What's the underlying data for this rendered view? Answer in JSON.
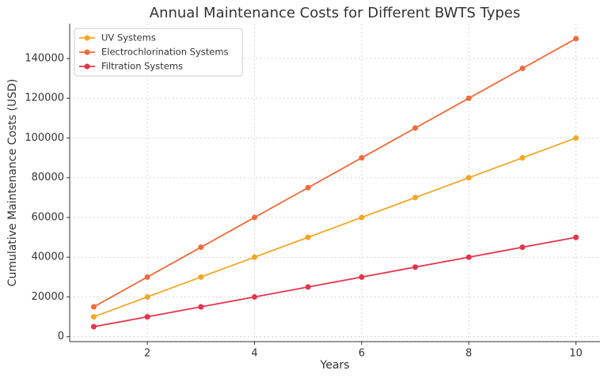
{
  "chart_data": {
    "type": "line",
    "title": "Annual Maintenance Costs for Different BWTS Types",
    "xlabel": "Years",
    "ylabel": "Cumulative Maintenance Costs (USD)",
    "x": [
      1,
      2,
      3,
      4,
      5,
      6,
      7,
      8,
      9,
      10
    ],
    "series": [
      {
        "name": "UV Systems",
        "color": "#f5a623",
        "values": [
          10000,
          20000,
          30000,
          40000,
          50000,
          60000,
          70000,
          80000,
          90000,
          100000
        ]
      },
      {
        "name": "Electrochlorination Systems",
        "color": "#f26b38",
        "values": [
          15000,
          30000,
          45000,
          60000,
          75000,
          90000,
          105000,
          120000,
          135000,
          150000
        ]
      },
      {
        "name": "Filtration Systems",
        "color": "#e8334a",
        "values": [
          5000,
          10000,
          15000,
          20000,
          25000,
          30000,
          35000,
          40000,
          45000,
          50000
        ]
      }
    ],
    "xlim": [
      0.55,
      10.45
    ],
    "ylim": [
      -2500,
      157500
    ],
    "xticks": [
      2,
      4,
      6,
      8,
      10
    ],
    "yticks": [
      0,
      20000,
      40000,
      60000,
      80000,
      100000,
      120000,
      140000
    ],
    "grid": true,
    "legend": "upper-left"
  }
}
